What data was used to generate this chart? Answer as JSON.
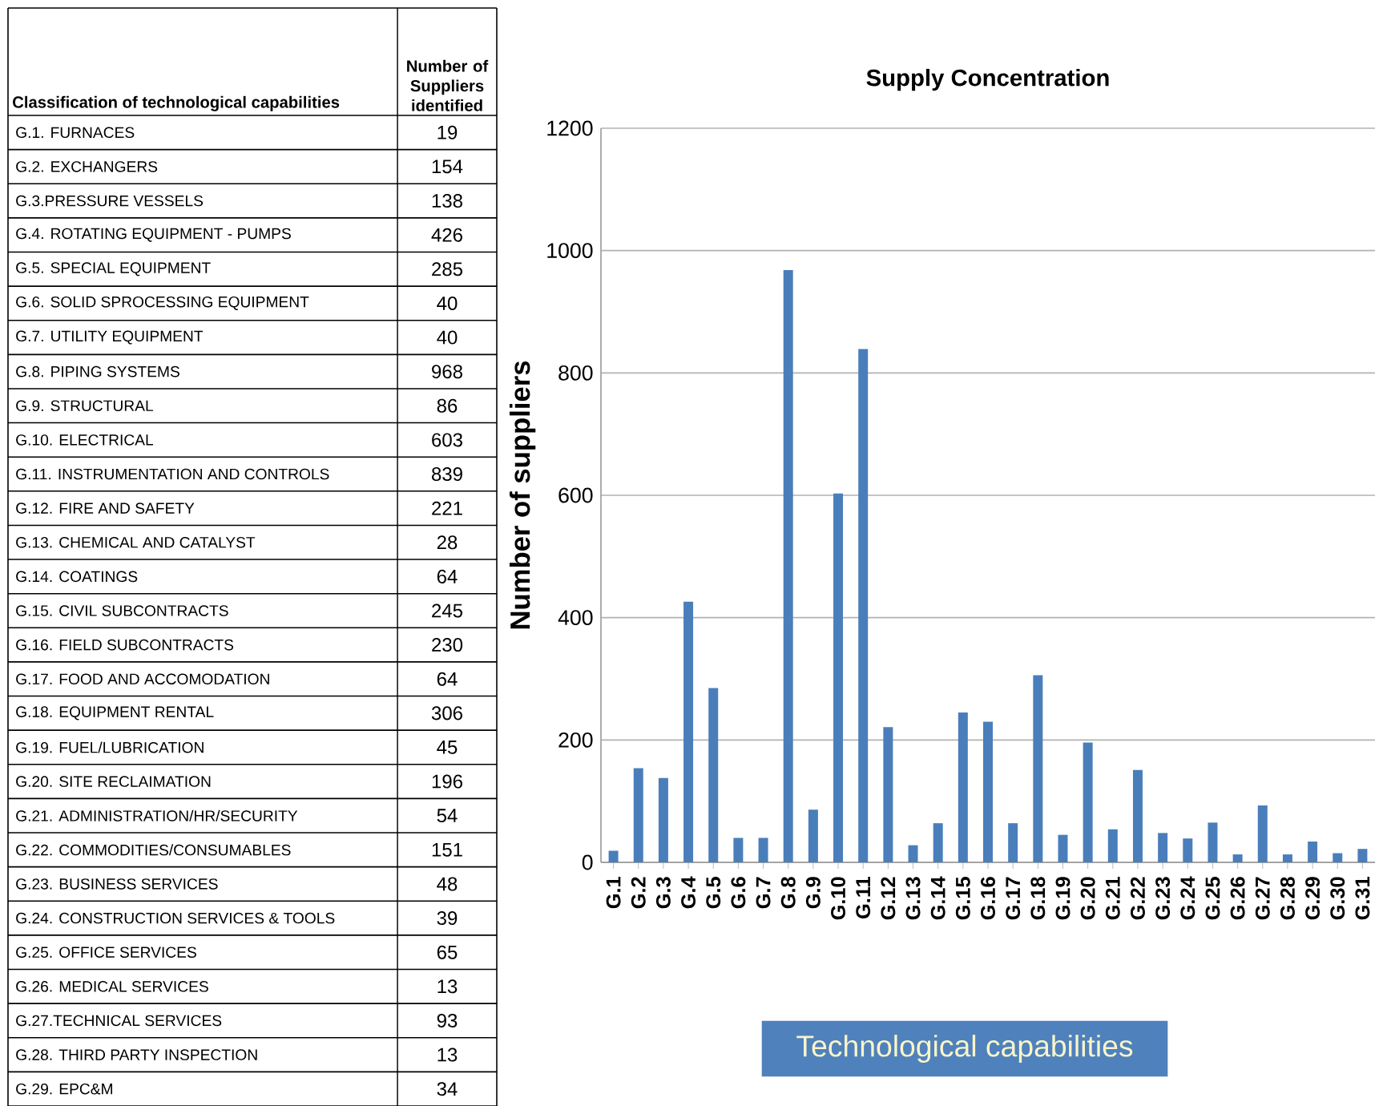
{
  "chart_data": [
    {
      "type": "other",
      "xlabel": "Classification of  technological capabilities",
      "ylabel": "Number of Suppliers identified",
      "data_labels": true,
      "categories": [
        "G.1. FURNACES",
        "G.2. EXCHANGERS",
        "G.3.PRESSURE VESSELS",
        "G.4. ROTATING EQUIPMENT - PUMPS",
        "G.5. SPECIAL EQUIPMENT",
        "G.6. SOLID SPROCESSING EQUIPMENT",
        "G.7. UTILITY EQUIPMENT",
        "G.8. PIPING SYSTEMS",
        "G.9. STRUCTURAL",
        "G.10. ELECTRICAL",
        "G.11. INSTRUMENTATION  AND  CONTROLS",
        "G.12. FIRE AND SAFETY",
        "G.13. CHEMICAL AND CATALYST",
        "G.14. COATINGS",
        "G.15. CIVIL SUBCONTRACTS",
        "G.16. FIELD SUBCONTRACTS",
        "G.17.  FOOD AND ACCOMODATION",
        "G.18. EQUIPMENT RENTAL",
        "G.19. FUEL/LUBRICATION",
        "G.20. SITE RECLAIMATION",
        "G.21. ADMINISTRATION/HR/SECURITY",
        "G.22. COMMODITIES/CONSUMABLES",
        "G.23. BUSINESS SERVICES",
        "G.24. CONSTRUCTION SERVICES & TOOLS",
        "G.25. OFFICE SERVICES",
        "G.26. MEDICAL SERVICES",
        "G.27.TECHNICAL SERVICES",
        "G.28. THIRD PARTY INSPECTION",
        "G.29. EPC&M"
      ],
      "values": [
        19,
        154,
        138,
        426,
        285,
        40,
        40,
        968,
        86,
        603,
        839,
        221,
        28,
        64,
        245,
        230,
        64,
        306,
        45,
        196,
        54,
        151,
        48,
        39,
        65,
        13,
        93,
        13,
        34
      ]
    },
    {
      "type": "bar",
      "title": "Supply Concentration",
      "ylabel": "Number of suppliers",
      "xlabel": "Technological capabilities",
      "color": "#4a7ebb",
      "grid": "y",
      "categories": [
        "G.1",
        "G.2",
        "G.3",
        "G.4",
        "G.5",
        "G.6",
        "G.7",
        "G.8",
        "G.9",
        "G.10",
        "G.11",
        "G.12",
        "G.13",
        "G.14",
        "G.15",
        "G.16",
        "G.17",
        "G.18",
        "G.19",
        "G.20",
        "G.21",
        "G.22",
        "G.23",
        "G.24",
        "G.25",
        "G.26",
        "G.27",
        "G.28",
        "G.29",
        "G.30",
        "G.31"
      ],
      "values": [
        19,
        154,
        138,
        426,
        285,
        40,
        40,
        968,
        86,
        603,
        839,
        221,
        28,
        64,
        245,
        230,
        64,
        306,
        45,
        196,
        54,
        151,
        48,
        39,
        65,
        13,
        93,
        13,
        34,
        15,
        22
      ],
      "ylim": [
        0,
        1200
      ],
      "yticks": [
        0,
        200,
        400,
        600,
        800,
        1000,
        1200
      ]
    }
  ]
}
